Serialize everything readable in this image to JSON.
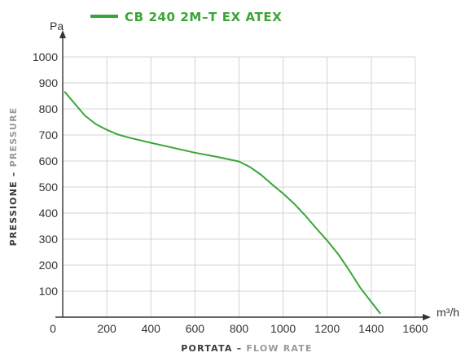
{
  "chart_data": {
    "type": "line",
    "legend": {
      "label": "CB 240 2M–T EX ATEX",
      "placement": "top"
    },
    "y_unit": "Pa",
    "x_unit": "m³/h",
    "ylabel": {
      "main": "PRESSIONE",
      "sep": " – ",
      "secondary": "PRESSURE"
    },
    "xlabel": {
      "main": "PORTATA",
      "sep": " – ",
      "secondary": "FLOW RATE"
    },
    "xlim": [
      0,
      1600
    ],
    "ylim": [
      0,
      1000
    ],
    "x_ticks": [
      0,
      200,
      400,
      600,
      800,
      1000,
      1200,
      1400,
      1600
    ],
    "y_ticks": [
      100,
      200,
      300,
      400,
      500,
      600,
      700,
      800,
      900,
      1000
    ],
    "grid": true,
    "colors": {
      "series": "#3aa535",
      "grid": "#d4d4d4",
      "axis": "#333333",
      "title_main": "#3a3a3a",
      "title_secondary": "#9a9a9a"
    },
    "series": [
      {
        "name": "CB 240 2M–T EX ATEX",
        "x": [
          10,
          50,
          100,
          150,
          200,
          250,
          300,
          400,
          500,
          600,
          700,
          800,
          850,
          900,
          950,
          1000,
          1050,
          1100,
          1150,
          1200,
          1250,
          1300,
          1350,
          1400,
          1440
        ],
        "y": [
          865,
          825,
          775,
          742,
          720,
          702,
          690,
          670,
          651,
          632,
          616,
          598,
          577,
          547,
          510,
          475,
          436,
          391,
          342,
          294,
          242,
          180,
          113,
          58,
          15
        ]
      }
    ]
  }
}
